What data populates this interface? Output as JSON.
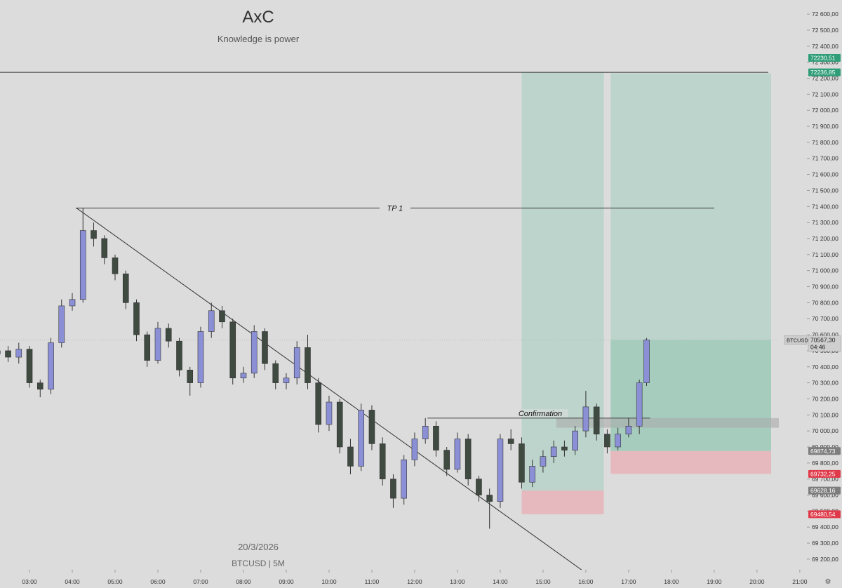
{
  "chart_data": {
    "type": "candlestick",
    "title": "AxC",
    "subtitle": "Knowledge is power",
    "watermark": [
      "20/3/2026",
      "BTCUSD | 5M"
    ],
    "x": [
      2.25,
      2.5,
      2.75,
      3,
      3.25,
      3.5,
      3.75,
      4,
      4.25,
      4.5,
      4.75,
      5,
      5.25,
      5.5,
      5.75,
      6,
      6.25,
      6.5,
      6.75,
      7,
      7.25,
      7.5,
      7.75,
      8,
      8.25,
      8.5,
      8.75,
      9,
      9.25,
      9.5,
      9.75,
      10,
      10.25,
      10.5,
      10.75,
      11,
      11.25,
      11.5,
      11.75,
      12,
      12.25,
      12.5,
      12.75,
      13,
      13.25,
      13.5,
      13.75,
      14,
      14.25,
      14.5,
      14.75,
      15,
      15.25,
      15.5,
      15.75,
      16,
      16.25,
      16.5,
      16.75,
      17,
      17.25,
      17.42
    ],
    "open": [
      70480,
      70500,
      70460,
      70510,
      70300,
      70260,
      70550,
      70780,
      70820,
      71250,
      71200,
      71080,
      70980,
      70800,
      70600,
      70440,
      70640,
      70560,
      70380,
      70300,
      70620,
      70750,
      70680,
      70330,
      70360,
      70620,
      70420,
      70300,
      70330,
      70520,
      70300,
      70040,
      70180,
      69900,
      69780,
      70130,
      69920,
      69700,
      69580,
      69820,
      69950,
      70030,
      69880,
      69760,
      69950,
      69700,
      69600,
      69560,
      69950,
      69920,
      69680,
      69780,
      69840,
      69900,
      69880,
      70000,
      70150,
      69980,
      69900,
      69980,
      70030,
      70300
    ],
    "high": [
      70540,
      70530,
      70550,
      70530,
      70320,
      70580,
      70820,
      70860,
      71390,
      71300,
      71220,
      71100,
      71000,
      70820,
      70620,
      70680,
      70670,
      70580,
      70400,
      70650,
      70800,
      70780,
      70700,
      70400,
      70660,
      70640,
      70440,
      70360,
      70560,
      70600,
      70330,
      70220,
      70200,
      69950,
      70170,
      70160,
      69960,
      69730,
      69850,
      69990,
      70080,
      70060,
      69900,
      69990,
      69980,
      69720,
      69640,
      69980,
      70010,
      69960,
      69820,
      69880,
      69940,
      69940,
      70030,
      70250,
      70170,
      70010,
      70020,
      70080,
      70320,
      70580
    ],
    "low": [
      70440,
      70430,
      70420,
      70270,
      70210,
      70230,
      70520,
      70750,
      70800,
      71150,
      71040,
      70940,
      70760,
      70560,
      70400,
      70420,
      70520,
      70340,
      70220,
      70270,
      70580,
      70640,
      70290,
      70300,
      70330,
      70380,
      70260,
      70260,
      70290,
      70260,
      69990,
      70000,
      69860,
      69730,
      69750,
      69880,
      69660,
      69520,
      69540,
      69780,
      69920,
      69840,
      69720,
      69740,
      69660,
      69560,
      69390,
      69520,
      69880,
      69640,
      69650,
      69740,
      69800,
      69840,
      69850,
      69960,
      69940,
      69860,
      69880,
      69960,
      69980,
      70280
    ],
    "close": [
      70500,
      70460,
      70510,
      70300,
      70260,
      70550,
      70780,
      70820,
      71250,
      71200,
      71080,
      70980,
      70800,
      70600,
      70440,
      70640,
      70560,
      70380,
      70300,
      70620,
      70750,
      70680,
      70330,
      70360,
      70620,
      70420,
      70300,
      70330,
      70520,
      70300,
      70040,
      70180,
      69900,
      69780,
      70130,
      69920,
      69700,
      69580,
      69820,
      69950,
      70030,
      69880,
      69760,
      69950,
      69700,
      69600,
      69560,
      69950,
      69920,
      69680,
      69780,
      69840,
      69900,
      69880,
      70000,
      70150,
      69980,
      69900,
      69980,
      70030,
      70300,
      70567.3
    ],
    "up_color": "#8a8fd6",
    "down_color": "#3f4a40",
    "xlim": [
      2.311,
      21.33
    ],
    "ylim": [
      69134,
      72688
    ],
    "xticks": [
      {
        "value": 3,
        "label": "03:00"
      },
      {
        "value": 4,
        "label": "04:00"
      },
      {
        "value": 5,
        "label": "05:00"
      },
      {
        "value": 6,
        "label": "06:00"
      },
      {
        "value": 7,
        "label": "07:00"
      },
      {
        "value": 8,
        "label": "08:00"
      },
      {
        "value": 9,
        "label": "09:00"
      },
      {
        "value": 10,
        "label": "10:00"
      },
      {
        "value": 11,
        "label": "11:00"
      },
      {
        "value": 12,
        "label": "12:00"
      },
      {
        "value": 13,
        "label": "13:00"
      },
      {
        "value": 14,
        "label": "14:00"
      },
      {
        "value": 15,
        "label": "15:00"
      },
      {
        "value": 16,
        "label": "16:00"
      },
      {
        "value": 17,
        "label": "17:00"
      },
      {
        "value": 18,
        "label": "18:00"
      },
      {
        "value": 19,
        "label": "19:00"
      },
      {
        "value": 20,
        "label": "20:00"
      },
      {
        "value": 21,
        "label": "21:00"
      }
    ],
    "yticks": [
      {
        "value": 69200,
        "label": "69 200,00"
      },
      {
        "value": 69300,
        "label": "69 300,00"
      },
      {
        "value": 69400,
        "label": "69 400,00"
      },
      {
        "value": 69500,
        "label": "69 500,00"
      },
      {
        "value": 69600,
        "label": "69 600,00"
      },
      {
        "value": 69700,
        "label": "69 700,00"
      },
      {
        "value": 69800,
        "label": "69 800,00"
      },
      {
        "value": 69900,
        "label": "69 900,00"
      },
      {
        "value": 70000,
        "label": "70 000,00"
      },
      {
        "value": 70100,
        "label": "70 100,00"
      },
      {
        "value": 70200,
        "label": "70 200,00"
      },
      {
        "value": 70300,
        "label": "70 300,00"
      },
      {
        "value": 70400,
        "label": "70 400,00"
      },
      {
        "value": 70500,
        "label": "70 500,00"
      },
      {
        "value": 70600,
        "label": "70 600,00"
      },
      {
        "value": 70700,
        "label": "70 700,00"
      },
      {
        "value": 70800,
        "label": "70 800,00"
      },
      {
        "value": 70900,
        "label": "70 900,00"
      },
      {
        "value": 71000,
        "label": "71 000,00"
      },
      {
        "value": 71100,
        "label": "71 100,00"
      },
      {
        "value": 71200,
        "label": "71 200,00"
      },
      {
        "value": 71300,
        "label": "71 300,00"
      },
      {
        "value": 71400,
        "label": "71 400,00"
      },
      {
        "value": 71500,
        "label": "71 500,00"
      },
      {
        "value": 71600,
        "label": "71 600,00"
      },
      {
        "value": 71700,
        "label": "71 700,00"
      },
      {
        "value": 71800,
        "label": "71 800,00"
      },
      {
        "value": 71900,
        "label": "71 900,00"
      },
      {
        "value": 72000,
        "label": "72 000,00"
      },
      {
        "value": 72100,
        "label": "72 100,00"
      },
      {
        "value": 72200,
        "label": "72 200,00"
      },
      {
        "value": 72300,
        "label": "72 300,00"
      },
      {
        "value": 72400,
        "label": "72 400,00"
      },
      {
        "value": 72500,
        "label": "72 500,00"
      },
      {
        "value": 72600,
        "label": "72 600,00"
      }
    ],
    "tp_line": {
      "label": "TP 1",
      "price": 71390,
      "x": [
        4.08,
        19.0
      ]
    },
    "confirmation": {
      "label": "Confirmation",
      "price": 70080,
      "x": [
        12.3,
        17.5
      ]
    },
    "trendline": {
      "x": [
        4.1,
        16.08
      ],
      "y": [
        71390,
        69099
      ]
    },
    "zone": {
      "price": [
        70020,
        70080
      ],
      "x": [
        15.31,
        21.2
      ]
    },
    "positions": [
      {
        "x": [
          14.5,
          16.42
        ],
        "entry": 69628.16,
        "stop": 69480.54,
        "target": 72236.85,
        "entry_label": "69628,16",
        "stop_label": "69480,54",
        "target_label": "72236,85"
      },
      {
        "x": [
          16.58,
          20.33
        ],
        "entry": 69874.73,
        "stop": 69732.25,
        "target": 72230.51,
        "entry_label": "69874,73",
        "stop_label": "69732,25",
        "target_label": "72230,51"
      }
    ],
    "current": {
      "symbol": "BTCUSD",
      "label": "70567,30",
      "countdown": "04:46"
    }
  }
}
